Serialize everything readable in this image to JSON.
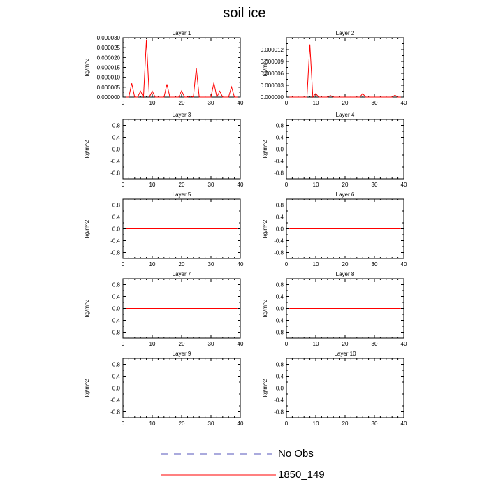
{
  "figure": {
    "title": "soil ice"
  },
  "legend": [
    {
      "name": "No Obs",
      "color": "#5555bb",
      "style": "dashed"
    },
    {
      "name": "1850_149",
      "color": "#ff0000",
      "style": "solid"
    }
  ],
  "chart_data": [
    {
      "type": "line",
      "title": "Layer 1",
      "ylabel": "kg/m^2",
      "xlabel": "",
      "xlim": [
        0,
        40
      ],
      "ylim": [
        0,
        3e-05
      ],
      "xticks": [
        "0",
        "10",
        "20",
        "30",
        "40"
      ],
      "yticks": [
        "0.000000",
        "0.000005",
        "0.000010",
        "0.000015",
        "0.000020",
        "0.000025",
        "0.000030"
      ],
      "series": [
        {
          "name": "1850_149",
          "color": "#ff0000",
          "x": [
            1,
            2,
            3,
            4,
            5,
            6,
            7,
            8,
            9,
            10,
            11,
            12,
            13,
            14,
            15,
            16,
            17,
            18,
            19,
            20,
            21,
            22,
            23,
            24,
            25,
            26,
            27,
            28,
            29,
            30,
            31,
            32,
            33,
            34,
            35,
            36,
            37,
            38,
            39
          ],
          "y": [
            0,
            0,
            7e-06,
            0,
            0,
            3e-06,
            0,
            2.9e-05,
            0,
            3e-06,
            0,
            0,
            0,
            0,
            6.5e-06,
            0,
            0,
            0,
            0,
            3.2e-06,
            0,
            0,
            5e-07,
            0,
            1.48e-05,
            0,
            0,
            0,
            0,
            0,
            7.3e-06,
            0,
            3e-06,
            0,
            0,
            0,
            5.2e-06,
            0,
            0
          ]
        }
      ]
    },
    {
      "type": "line",
      "title": "Layer 2",
      "ylabel": "kg/m^2",
      "xlabel": "",
      "xlim": [
        0,
        40
      ],
      "ylim": [
        0,
        1.5e-05
      ],
      "xticks": [
        "0",
        "10",
        "20",
        "30",
        "40"
      ],
      "yticks": [
        "0.000000",
        "0.000003",
        "0.000006",
        "0.000009",
        "0.000012"
      ],
      "series": [
        {
          "name": "1850_149",
          "color": "#ff0000",
          "x": [
            1,
            2,
            3,
            4,
            5,
            6,
            7,
            8,
            9,
            10,
            11,
            12,
            13,
            14,
            15,
            16,
            17,
            18,
            19,
            20,
            21,
            22,
            23,
            24,
            25,
            26,
            27,
            28,
            29,
            30,
            31,
            32,
            33,
            34,
            35,
            36,
            37,
            38,
            39
          ],
          "y": [
            0,
            0,
            0,
            0,
            0,
            0,
            0,
            1.33e-05,
            0,
            9e-07,
            0,
            0,
            0,
            0,
            4e-07,
            0,
            0,
            0,
            0,
            0,
            0,
            0,
            0,
            0,
            0,
            9e-07,
            0,
            0,
            0,
            0,
            0,
            0,
            0,
            0,
            0,
            0,
            5e-07,
            0,
            0
          ]
        }
      ]
    },
    {
      "type": "line",
      "title": "Layer 3",
      "ylabel": "kg/m^2",
      "xlabel": "",
      "xlim": [
        0,
        40
      ],
      "ylim": [
        -1,
        1
      ],
      "xticks": [
        "0",
        "10",
        "20",
        "30",
        "40"
      ],
      "yticks": [
        "-0.8",
        "-0.4",
        "0.0",
        "0.4",
        "0.8"
      ],
      "series": [
        {
          "name": "1850_149",
          "color": "#ff0000",
          "x": [
            1,
            39
          ],
          "y": [
            0,
            0
          ]
        }
      ]
    },
    {
      "type": "line",
      "title": "Layer 4",
      "ylabel": "kg/m^2",
      "xlabel": "",
      "xlim": [
        0,
        40
      ],
      "ylim": [
        -1,
        1
      ],
      "xticks": [
        "0",
        "10",
        "20",
        "30",
        "40"
      ],
      "yticks": [
        "-0.8",
        "-0.4",
        "0.0",
        "0.4",
        "0.8"
      ],
      "series": [
        {
          "name": "1850_149",
          "color": "#ff0000",
          "x": [
            1,
            39
          ],
          "y": [
            0,
            0
          ]
        }
      ]
    },
    {
      "type": "line",
      "title": "Layer 5",
      "ylabel": "kg/m^2",
      "xlabel": "",
      "xlim": [
        0,
        40
      ],
      "ylim": [
        -1,
        1
      ],
      "xticks": [
        "0",
        "10",
        "20",
        "30",
        "40"
      ],
      "yticks": [
        "-0.8",
        "-0.4",
        "0.0",
        "0.4",
        "0.8"
      ],
      "series": [
        {
          "name": "1850_149",
          "color": "#ff0000",
          "x": [
            1,
            39
          ],
          "y": [
            0,
            0
          ]
        }
      ]
    },
    {
      "type": "line",
      "title": "Layer 6",
      "ylabel": "kg/m^2",
      "xlabel": "",
      "xlim": [
        0,
        40
      ],
      "ylim": [
        -1,
        1
      ],
      "xticks": [
        "0",
        "10",
        "20",
        "30",
        "40"
      ],
      "yticks": [
        "-0.8",
        "-0.4",
        "0.0",
        "0.4",
        "0.8"
      ],
      "series": [
        {
          "name": "1850_149",
          "color": "#ff0000",
          "x": [
            1,
            39
          ],
          "y": [
            0,
            0
          ]
        }
      ]
    },
    {
      "type": "line",
      "title": "Layer 7",
      "ylabel": "kg/m^2",
      "xlabel": "",
      "xlim": [
        0,
        40
      ],
      "ylim": [
        -1,
        1
      ],
      "xticks": [
        "0",
        "10",
        "20",
        "30",
        "40"
      ],
      "yticks": [
        "-0.8",
        "-0.4",
        "0.0",
        "0.4",
        "0.8"
      ],
      "series": [
        {
          "name": "1850_149",
          "color": "#ff0000",
          "x": [
            1,
            39
          ],
          "y": [
            0,
            0
          ]
        }
      ]
    },
    {
      "type": "line",
      "title": "Layer 8",
      "ylabel": "kg/m^2",
      "xlabel": "",
      "xlim": [
        0,
        40
      ],
      "ylim": [
        -1,
        1
      ],
      "xticks": [
        "0",
        "10",
        "20",
        "30",
        "40"
      ],
      "yticks": [
        "-0.8",
        "-0.4",
        "0.0",
        "0.4",
        "0.8"
      ],
      "series": [
        {
          "name": "1850_149",
          "color": "#ff0000",
          "x": [
            1,
            39
          ],
          "y": [
            0,
            0
          ]
        }
      ]
    },
    {
      "type": "line",
      "title": "Layer 9",
      "ylabel": "kg/m^2",
      "xlabel": "",
      "xlim": [
        0,
        40
      ],
      "ylim": [
        -1,
        1
      ],
      "xticks": [
        "0",
        "10",
        "20",
        "30",
        "40"
      ],
      "yticks": [
        "-0.8",
        "-0.4",
        "0.0",
        "0.4",
        "0.8"
      ],
      "series": [
        {
          "name": "1850_149",
          "color": "#ff0000",
          "x": [
            1,
            39
          ],
          "y": [
            0,
            0
          ]
        }
      ]
    },
    {
      "type": "line",
      "title": "Layer 10",
      "ylabel": "kg/m^2",
      "xlabel": "",
      "xlim": [
        0,
        40
      ],
      "ylim": [
        -1,
        1
      ],
      "xticks": [
        "0",
        "10",
        "20",
        "30",
        "40"
      ],
      "yticks": [
        "-0.8",
        "-0.4",
        "0.0",
        "0.4",
        "0.8"
      ],
      "series": [
        {
          "name": "1850_149",
          "color": "#ff0000",
          "x": [
            1,
            39
          ],
          "y": [
            0,
            0
          ]
        }
      ]
    }
  ]
}
